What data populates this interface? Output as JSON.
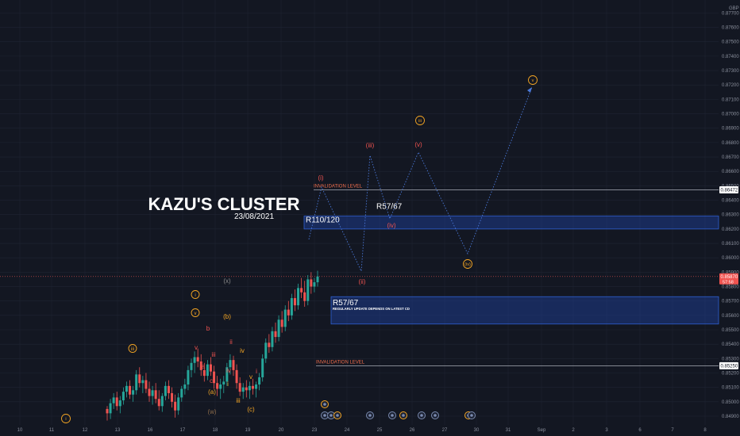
{
  "chart_data": {
    "type": "candlestick",
    "title": "KAZU'S CLUSTER",
    "subtitle": "23/08/2021",
    "currency": "GBP",
    "price_axis": {
      "min": 0.849,
      "max": 0.8775,
      "ticks": [
        "0.87700",
        "0.87600",
        "0.87500",
        "0.87400",
        "0.87300",
        "0.87200",
        "0.87100",
        "0.87000",
        "0.86900",
        "0.86800",
        "0.86700",
        "0.86600",
        "0.86500",
        "0.86400",
        "0.86300",
        "0.86200",
        "0.86100",
        "0.86000",
        "0.85900",
        "0.85800",
        "0.85700",
        "0.85600",
        "0.85500",
        "0.85400",
        "0.85300",
        "0.85200",
        "0.85100",
        "0.85000",
        "0.84900"
      ]
    },
    "time_axis": {
      "ticks": [
        "10",
        "11",
        "12",
        "13",
        "16",
        "17",
        "18",
        "19",
        "20",
        "23",
        "24",
        "25",
        "26",
        "27",
        "30",
        "31",
        "Sep",
        "2",
        "3",
        "6",
        "7",
        "8"
      ]
    },
    "last_price": {
      "value": "0.85870",
      "countdown": "57:58"
    },
    "highlighted_levels": [
      {
        "price": 0.86472,
        "label": "0.86472"
      },
      {
        "price": 0.8525,
        "label": "0.85250"
      }
    ],
    "invalidation_levels": [
      {
        "price": 0.86472,
        "label": "INVALIDATION LEVEL"
      },
      {
        "price": 0.8525,
        "label": "INVALIDATION LEVEL"
      }
    ],
    "zones": [
      {
        "label": "R110/120",
        "top": 0.8629,
        "bottom": 0.862
      },
      {
        "label": "R57/67",
        "top": 0.8573,
        "bottom": 0.8554,
        "note": "REGULARLY UPDATE DEPENDS ON LATEST CD"
      }
    ],
    "zone_label_r57_upper": "R57/67",
    "candles": [
      [
        0.8495,
        0.8497,
        0.8487,
        0.8492
      ],
      [
        0.8492,
        0.8502,
        0.8488,
        0.8499
      ],
      [
        0.8499,
        0.8506,
        0.8495,
        0.8503
      ],
      [
        0.8503,
        0.8507,
        0.8494,
        0.8497
      ],
      [
        0.8497,
        0.8504,
        0.8492,
        0.8501
      ],
      [
        0.8501,
        0.851,
        0.8498,
        0.8507
      ],
      [
        0.8507,
        0.8514,
        0.8503,
        0.8511
      ],
      [
        0.8511,
        0.8515,
        0.8502,
        0.8505
      ],
      [
        0.8505,
        0.8511,
        0.85,
        0.8508
      ],
      [
        0.8508,
        0.8522,
        0.8505,
        0.8519
      ],
      [
        0.8519,
        0.8524,
        0.851,
        0.8513
      ],
      [
        0.8513,
        0.8518,
        0.8506,
        0.8515
      ],
      [
        0.8515,
        0.852,
        0.8506,
        0.8509
      ],
      [
        0.8509,
        0.8514,
        0.85,
        0.8504
      ],
      [
        0.8504,
        0.8511,
        0.8498,
        0.8508
      ],
      [
        0.8508,
        0.8513,
        0.8499,
        0.8502
      ],
      [
        0.8502,
        0.8508,
        0.8494,
        0.8497
      ],
      [
        0.8497,
        0.8506,
        0.8493,
        0.8504
      ],
      [
        0.8504,
        0.8514,
        0.8501,
        0.8511
      ],
      [
        0.8511,
        0.8515,
        0.8502,
        0.8506
      ],
      [
        0.8506,
        0.851,
        0.8496,
        0.85
      ],
      [
        0.85,
        0.8505,
        0.8489,
        0.8494
      ],
      [
        0.8494,
        0.8506,
        0.8491,
        0.8503
      ],
      [
        0.8503,
        0.8511,
        0.85,
        0.8509
      ],
      [
        0.8509,
        0.8516,
        0.8505,
        0.8512
      ],
      [
        0.8512,
        0.8525,
        0.8508,
        0.8522
      ],
      [
        0.8522,
        0.853,
        0.8517,
        0.8527
      ],
      [
        0.8527,
        0.8535,
        0.852,
        0.8531
      ],
      [
        0.8531,
        0.8537,
        0.8524,
        0.8528
      ],
      [
        0.8528,
        0.8533,
        0.8518,
        0.8522
      ],
      [
        0.8522,
        0.8527,
        0.8514,
        0.8518
      ],
      [
        0.8518,
        0.8529,
        0.8515,
        0.8526
      ],
      [
        0.8526,
        0.8531,
        0.8518,
        0.8521
      ],
      [
        0.8521,
        0.8525,
        0.8509,
        0.8513
      ],
      [
        0.8513,
        0.8518,
        0.8504,
        0.8509
      ],
      [
        0.8509,
        0.8516,
        0.8502,
        0.8512
      ],
      [
        0.8512,
        0.8518,
        0.8506,
        0.8514
      ],
      [
        0.8514,
        0.8527,
        0.8511,
        0.8524
      ],
      [
        0.8524,
        0.8533,
        0.8519,
        0.8529
      ],
      [
        0.8529,
        0.8532,
        0.8518,
        0.8522
      ],
      [
        0.8522,
        0.8526,
        0.8509,
        0.8513
      ],
      [
        0.8513,
        0.8517,
        0.8504,
        0.8507
      ],
      [
        0.8507,
        0.8513,
        0.8502,
        0.851
      ],
      [
        0.851,
        0.8515,
        0.8503,
        0.8508
      ],
      [
        0.8508,
        0.8514,
        0.8502,
        0.8511
      ],
      [
        0.8511,
        0.8516,
        0.8505,
        0.8509
      ],
      [
        0.8509,
        0.8514,
        0.8503,
        0.8512
      ],
      [
        0.8512,
        0.852,
        0.8508,
        0.8517
      ],
      [
        0.8517,
        0.8533,
        0.8514,
        0.853
      ],
      [
        0.853,
        0.8544,
        0.8527,
        0.8541
      ],
      [
        0.8541,
        0.8547,
        0.8534,
        0.8538
      ],
      [
        0.8538,
        0.8552,
        0.8535,
        0.8549
      ],
      [
        0.8549,
        0.8555,
        0.8541,
        0.8545
      ],
      [
        0.8545,
        0.856,
        0.8542,
        0.8557
      ],
      [
        0.8557,
        0.8563,
        0.8548,
        0.8552
      ],
      [
        0.8552,
        0.8567,
        0.8549,
        0.8564
      ],
      [
        0.8564,
        0.857,
        0.8556,
        0.856
      ],
      [
        0.856,
        0.8575,
        0.8557,
        0.8572
      ],
      [
        0.8572,
        0.8578,
        0.8563,
        0.8567
      ],
      [
        0.8567,
        0.8582,
        0.8564,
        0.8579
      ],
      [
        0.8579,
        0.8586,
        0.8572,
        0.8576
      ],
      [
        0.8576,
        0.8584,
        0.8566,
        0.857
      ],
      [
        0.857,
        0.8588,
        0.8567,
        0.8585
      ],
      [
        0.8585,
        0.859,
        0.8575,
        0.858
      ],
      [
        0.858,
        0.8586,
        0.8576,
        0.8583
      ],
      [
        0.8583,
        0.8591,
        0.858,
        0.8587
      ]
    ],
    "wave_path_labels": [
      "(i)",
      "(ii)",
      "(iii)",
      "(iv)",
      "(v)"
    ],
    "wave_annotations": [
      {
        "text": "(i)",
        "color": "#ef5350"
      },
      {
        "text": "(ii)",
        "color": "#ef5350"
      },
      {
        "text": "(iii)",
        "color": "#ef5350"
      },
      {
        "text": "(iv)",
        "color": "#ef5350"
      },
      {
        "text": "(v)",
        "color": "#ef5350"
      },
      {
        "text": "iii",
        "color": "#f5a623"
      },
      {
        "text": "iv",
        "color": "#f5a623"
      },
      {
        "text": "v",
        "color": "#f5a623"
      },
      {
        "text": "i",
        "color": "#f5a623"
      },
      {
        "text": "iii",
        "color": "#f5a623"
      },
      {
        "text": "i",
        "color": "#f5a623"
      },
      {
        "text": "v",
        "color": "#f5a623"
      },
      {
        "text": "b",
        "color": "#ef5350"
      },
      {
        "text": "a",
        "color": "#ef5350"
      },
      {
        "text": "c",
        "color": "#ef5350"
      },
      {
        "text": "(a)",
        "color": "#f5a623"
      },
      {
        "text": "(b)",
        "color": "#f5a623"
      },
      {
        "text": "(c)",
        "color": "#f5a623"
      },
      {
        "text": "(w)",
        "color": "#8a6a4a"
      },
      {
        "text": "(x)",
        "color": "#8a8a8a"
      },
      {
        "text": "ii",
        "color": "#ef5350"
      },
      {
        "text": "iv",
        "color": "#ef5350"
      },
      {
        "text": "i",
        "color": "#ef5350"
      },
      {
        "text": "iii",
        "color": "#ef5350"
      },
      {
        "text": "v",
        "color": "#ef5350"
      }
    ],
    "colors": {
      "background": "#131722",
      "grid": "#1f2432",
      "up": "#26a69a",
      "down": "#ef5350",
      "zone_fill": "#1e3a8a",
      "zone_border": "#2f5fd0",
      "path": "#4a78d8",
      "invalidation_text": "#ef6c4a",
      "circle": "#f5a623",
      "event_icon": "#7b8bb0"
    }
  }
}
